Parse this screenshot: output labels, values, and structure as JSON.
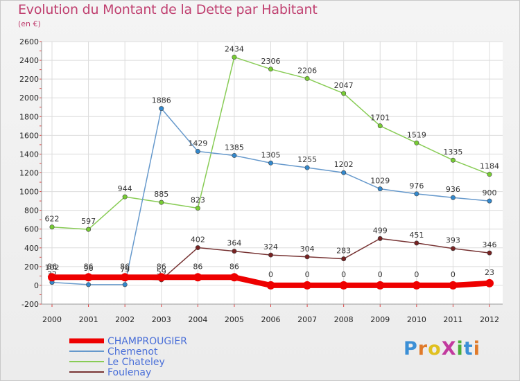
{
  "header": {
    "title": "Evolution du Montant de la Dette par Habitant",
    "subtitle": "(en €)"
  },
  "logo": {
    "text": "ProXiti"
  },
  "chart_data": {
    "type": "line",
    "title": "Evolution du Montant de la Dette par Habitant",
    "subtitle": "(en €)",
    "x": [
      2000,
      2001,
      2002,
      2003,
      2004,
      2005,
      2006,
      2007,
      2008,
      2009,
      2010,
      2011,
      2012
    ],
    "ylim": [
      -200,
      2600
    ],
    "yticks": [
      -200,
      0,
      200,
      400,
      600,
      800,
      1000,
      1200,
      1400,
      1600,
      1800,
      2000,
      2200,
      2400,
      2600
    ],
    "grid": true,
    "legend": "bottom-left",
    "series": [
      {
        "name": "Le Chateley",
        "color": "#88cc55",
        "point_color": "#77cc33",
        "values": [
          622,
          597,
          944,
          885,
          823,
          2434,
          2306,
          2206,
          2047,
          1701,
          1519,
          1335,
          1184
        ]
      },
      {
        "name": "Chemenot",
        "color": "#6699cc",
        "point_color": "#3388cc",
        "values": [
          32,
          8,
          8,
          1886,
          1429,
          1385,
          1305,
          1255,
          1202,
          1029,
          976,
          936,
          900
        ]
      },
      {
        "name": "Foulenay",
        "color": "#773333",
        "point_color": "#772222",
        "values": [
          102,
          96,
          79,
          59,
          402,
          364,
          324,
          304,
          283,
          499,
          451,
          393,
          346
        ]
      },
      {
        "name": "CHAMPROUGIER",
        "color": "#ee0000",
        "point_color": "#ee0000",
        "values": [
          86,
          86,
          86,
          86,
          86,
          86,
          0,
          0,
          0,
          0,
          0,
          0,
          23
        ]
      }
    ]
  }
}
